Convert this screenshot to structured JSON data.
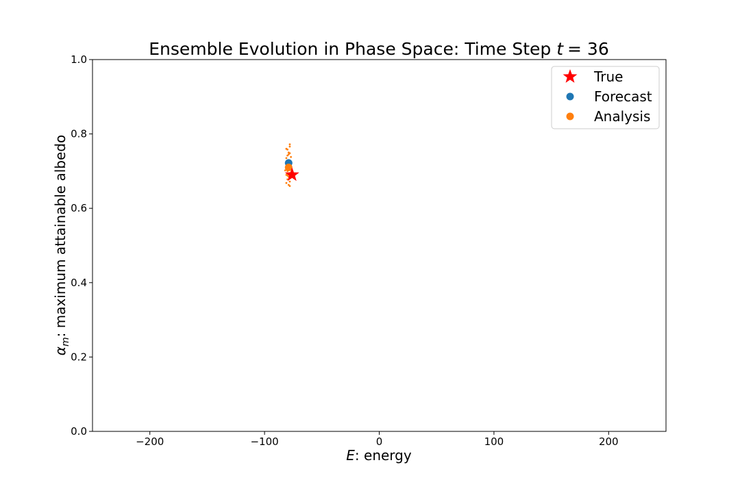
{
  "chart_data": {
    "type": "scatter",
    "title_prefix": "Ensemble Evolution in Phase Space: Time Step ",
    "title_var": "t",
    "title_value": "= 36",
    "xlabel_var": "E",
    "xlabel_text": ": energy",
    "ylabel_var": "α",
    "ylabel_sub": "m",
    "ylabel_text": ": maximum attainable albedo",
    "xlim": [
      -250,
      250
    ],
    "ylim": [
      0.0,
      1.0
    ],
    "xticks": [
      -200,
      -100,
      0,
      100,
      200
    ],
    "xtick_labels": [
      "−200",
      "−100",
      "0",
      "100",
      "200"
    ],
    "yticks": [
      0.0,
      0.2,
      0.4,
      0.6,
      0.8,
      1.0
    ],
    "ytick_labels": [
      "0.0",
      "0.2",
      "0.4",
      "0.6",
      "0.8",
      "1.0"
    ],
    "grid": false,
    "legend_position": "top-right",
    "legend": [
      {
        "label": "True",
        "marker": "star",
        "color": "#ff0000"
      },
      {
        "label": "Forecast",
        "marker": "circle",
        "color": "#1f77b4"
      },
      {
        "label": "Analysis",
        "marker": "circle",
        "color": "#ff7f0e"
      }
    ],
    "series": [
      {
        "name": "Analysis",
        "role": "ensemble",
        "color": "#ff7f0e",
        "points": [
          [
            -81,
            0.76
          ],
          [
            -80,
            0.758
          ],
          [
            -78,
            0.772
          ],
          [
            -78,
            0.766
          ],
          [
            -79,
            0.75
          ],
          [
            -80,
            0.742
          ],
          [
            -78,
            0.748
          ],
          [
            -81,
            0.735
          ],
          [
            -79,
            0.73
          ],
          [
            -77,
            0.738
          ],
          [
            -80,
            0.725
          ],
          [
            -78,
            0.72
          ],
          [
            -81,
            0.712
          ],
          [
            -79,
            0.706
          ],
          [
            -77,
            0.715
          ],
          [
            -80,
            0.7
          ],
          [
            -78,
            0.695
          ],
          [
            -81,
            0.69
          ],
          [
            -79,
            0.685
          ],
          [
            -77,
            0.692
          ],
          [
            -80,
            0.678
          ],
          [
            -78,
            0.672
          ],
          [
            -81,
            0.668
          ],
          [
            -79,
            0.663
          ],
          [
            -78,
            0.66
          ],
          [
            -80,
            0.688
          ],
          [
            -82,
            0.702
          ],
          [
            -78,
            0.705
          ],
          [
            -79,
            0.745
          ],
          [
            -80,
            0.718
          ]
        ]
      },
      {
        "name": "Forecast",
        "role": "mean",
        "color": "#1f77b4",
        "points": [
          [
            -79,
            0.722
          ]
        ]
      },
      {
        "name": "Analysis",
        "role": "mean",
        "color": "#ff7f0e",
        "points": [
          [
            -79,
            0.71
          ]
        ]
      },
      {
        "name": "True",
        "role": "truth",
        "color": "#ff0000",
        "points": [
          [
            -76,
            0.69
          ]
        ]
      }
    ]
  }
}
